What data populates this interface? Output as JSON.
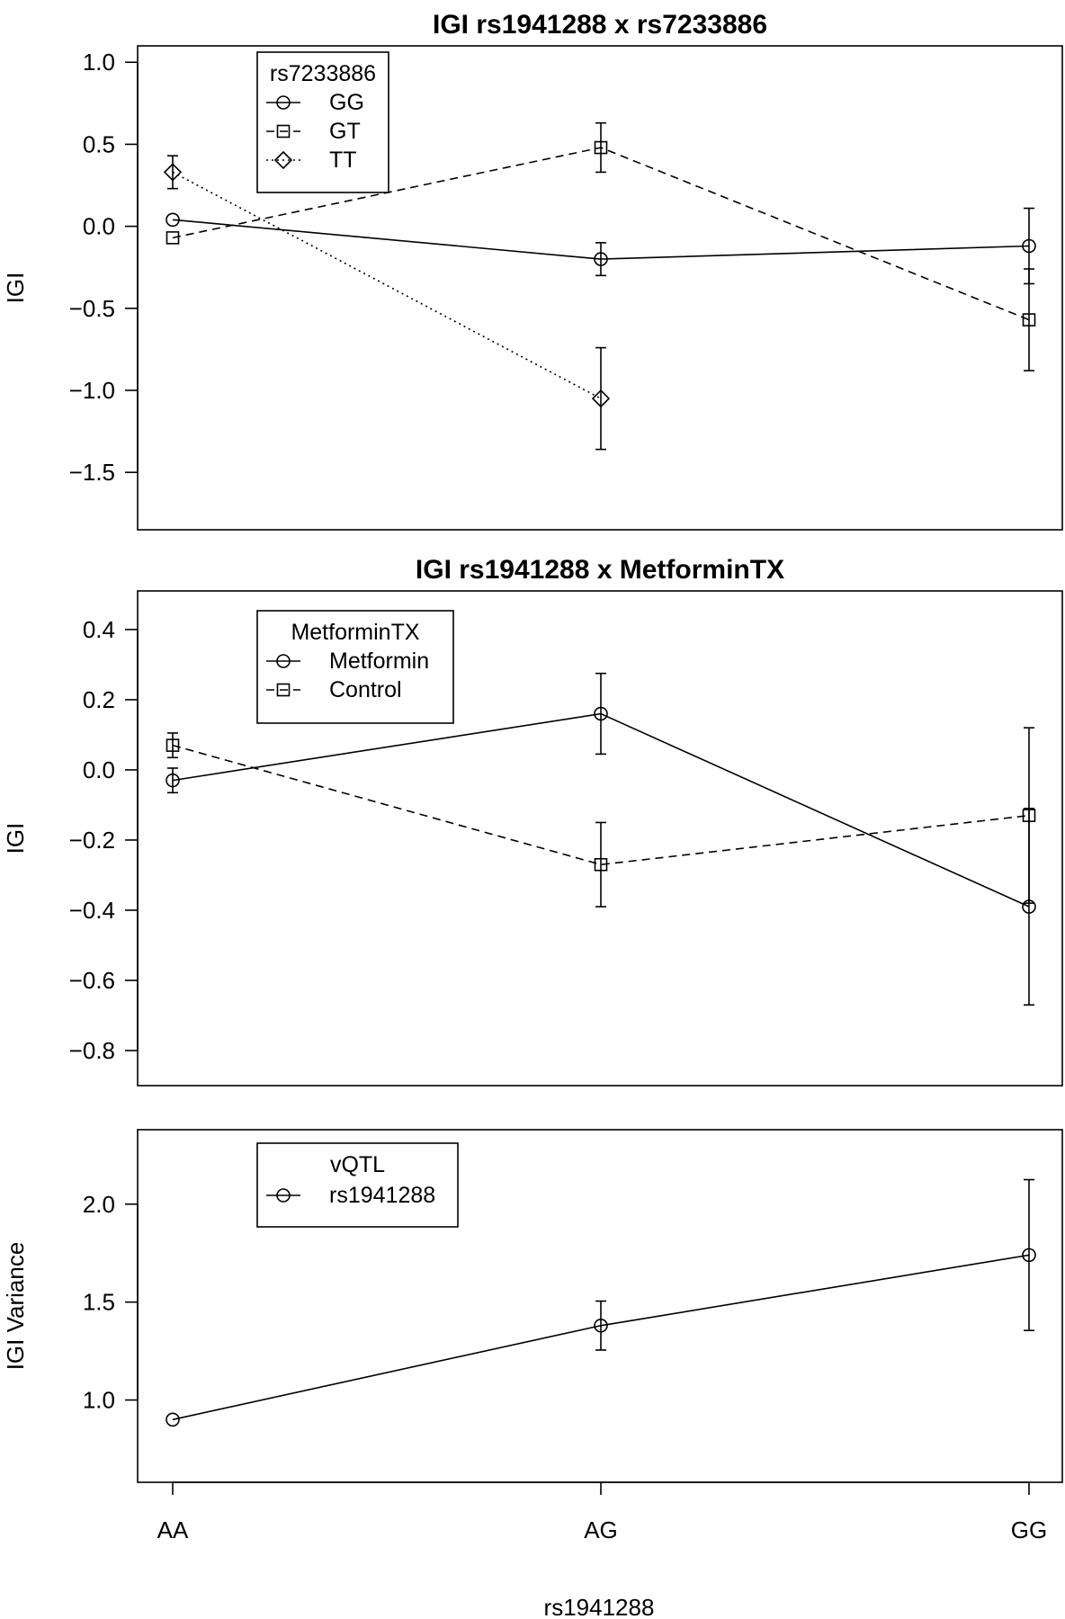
{
  "chart_data": [
    {
      "type": "line",
      "title": "IGI rs1941288 x rs7233886",
      "xlabel": "",
      "ylabel": "IGI",
      "categories": [
        "AA",
        "AG",
        "GG"
      ],
      "ylim": [
        -1.85,
        1.1
      ],
      "yticks": [
        "1.0",
        "0.5",
        "0.0",
        "−0.5",
        "−1.0",
        "−1.5"
      ],
      "show_x_ticks": false,
      "grid": false,
      "legend": {
        "title": "rs7233886",
        "position": "top-left"
      },
      "series": [
        {
          "name": "GG",
          "marker": "circle",
          "dash": "solid",
          "values": [
            0.04,
            -0.2,
            -0.12
          ],
          "err": [
            null,
            0.1,
            0.23
          ]
        },
        {
          "name": "GT",
          "marker": "square",
          "dash": "dashed",
          "values": [
            -0.07,
            0.48,
            -0.57
          ],
          "err": [
            null,
            0.15,
            0.31
          ]
        },
        {
          "name": "TT",
          "marker": "diamond",
          "dash": "dotted",
          "values": [
            0.33,
            -1.05,
            null
          ],
          "err": [
            0.1,
            0.31,
            null
          ]
        }
      ]
    },
    {
      "type": "line",
      "title": "IGI rs1941288 x MetforminTX",
      "xlabel": "",
      "ylabel": "IGI",
      "categories": [
        "AA",
        "AG",
        "GG"
      ],
      "ylim": [
        -0.9,
        0.51
      ],
      "yticks": [
        "0.4",
        "0.2",
        "0.0",
        "−0.2",
        "−0.4",
        "−0.6",
        "−0.8"
      ],
      "show_x_ticks": false,
      "grid": false,
      "legend": {
        "title": "MetforminTX",
        "position": "top-left"
      },
      "series": [
        {
          "name": "Metformin",
          "marker": "circle",
          "dash": "solid",
          "values": [
            -0.03,
            0.16,
            -0.39
          ],
          "err": [
            0.035,
            0.115,
            0.28
          ]
        },
        {
          "name": "Control",
          "marker": "square",
          "dash": "dashed",
          "values": [
            0.07,
            -0.27,
            -0.13
          ],
          "err": [
            0.035,
            0.12,
            0.25
          ]
        }
      ]
    },
    {
      "type": "line",
      "title": "",
      "xlabel": "rs1941288",
      "ylabel": "IGI Variance",
      "categories": [
        "AA",
        "AG",
        "GG"
      ],
      "ylim": [
        0.58,
        2.38
      ],
      "yticks": [
        "1.0",
        "1.5",
        "2.0"
      ],
      "show_x_ticks": true,
      "grid": false,
      "legend": {
        "title": "vQTL",
        "position": "top-left"
      },
      "series": [
        {
          "name": "rs1941288",
          "marker": "circle",
          "dash": "solid",
          "values": [
            0.9,
            1.38,
            1.74
          ],
          "err": [
            null,
            0.125,
            0.385
          ]
        }
      ]
    }
  ]
}
